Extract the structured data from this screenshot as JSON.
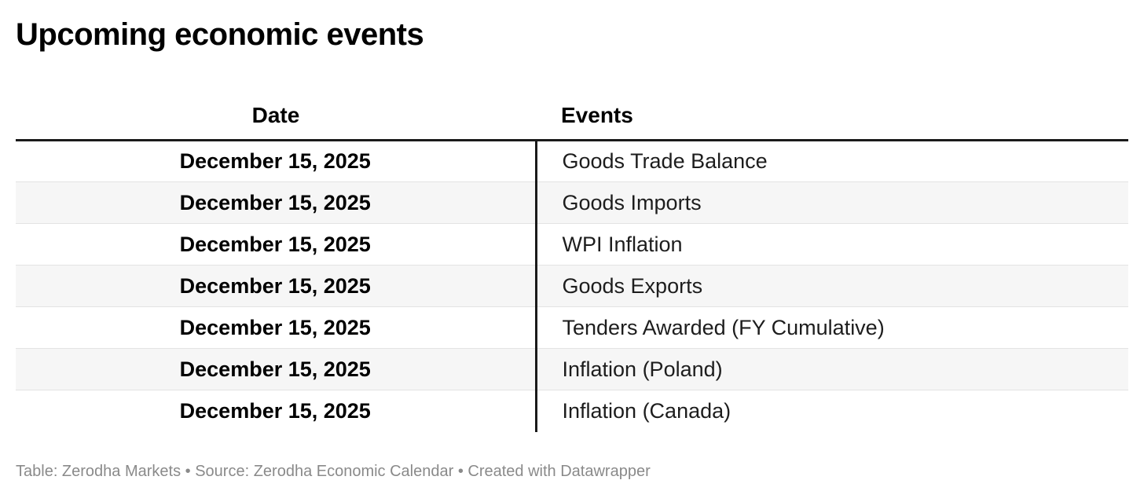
{
  "title": "Upcoming economic events",
  "colors": {
    "title_text": "#000000",
    "body_text": "#1d1d1d",
    "rule_black": "#1a1a1a",
    "row_alt_bg": "#f6f6f6",
    "row_border": "#e3e3e3",
    "footer_text": "#8a8a8a",
    "background": "#ffffff"
  },
  "table": {
    "columns": [
      {
        "label": "Date"
      },
      {
        "label": "Events"
      }
    ],
    "rows": [
      {
        "date": "December 15, 2025",
        "event": "Goods Trade Balance"
      },
      {
        "date": "December 15, 2025",
        "event": "Goods Imports"
      },
      {
        "date": "December 15, 2025",
        "event": "WPI Inflation"
      },
      {
        "date": "December 15, 2025",
        "event": "Goods Exports"
      },
      {
        "date": "December 15, 2025",
        "event": "Tenders Awarded (FY Cumulative)"
      },
      {
        "date": "December 15, 2025",
        "event": "Inflation (Poland)"
      },
      {
        "date": "December 15, 2025",
        "event": "Inflation (Canada)"
      }
    ]
  },
  "footer": {
    "text": "Table: Zerodha Markets • Source: Zerodha Economic Calendar • Created with Datawrapper"
  },
  "chart_data": {
    "type": "table",
    "title": "Upcoming economic events",
    "columns": [
      "Date",
      "Events"
    ],
    "rows": [
      [
        "December 15, 2025",
        "Goods Trade Balance"
      ],
      [
        "December 15, 2025",
        "Goods Imports"
      ],
      [
        "December 15, 2025",
        "WPI Inflation"
      ],
      [
        "December 15, 2025",
        "Goods Exports"
      ],
      [
        "December 15, 2025",
        "Tenders Awarded (FY Cumulative)"
      ],
      [
        "December 15, 2025",
        "Inflation (Poland)"
      ],
      [
        "December 15, 2025",
        "Inflation (Canada)"
      ]
    ],
    "layout_hints": {
      "date_column_align": "center",
      "events_column_align": "left",
      "zebra_striping": true,
      "header_rule": "thick-black",
      "column_divider": "black-vertical-body-only"
    }
  }
}
